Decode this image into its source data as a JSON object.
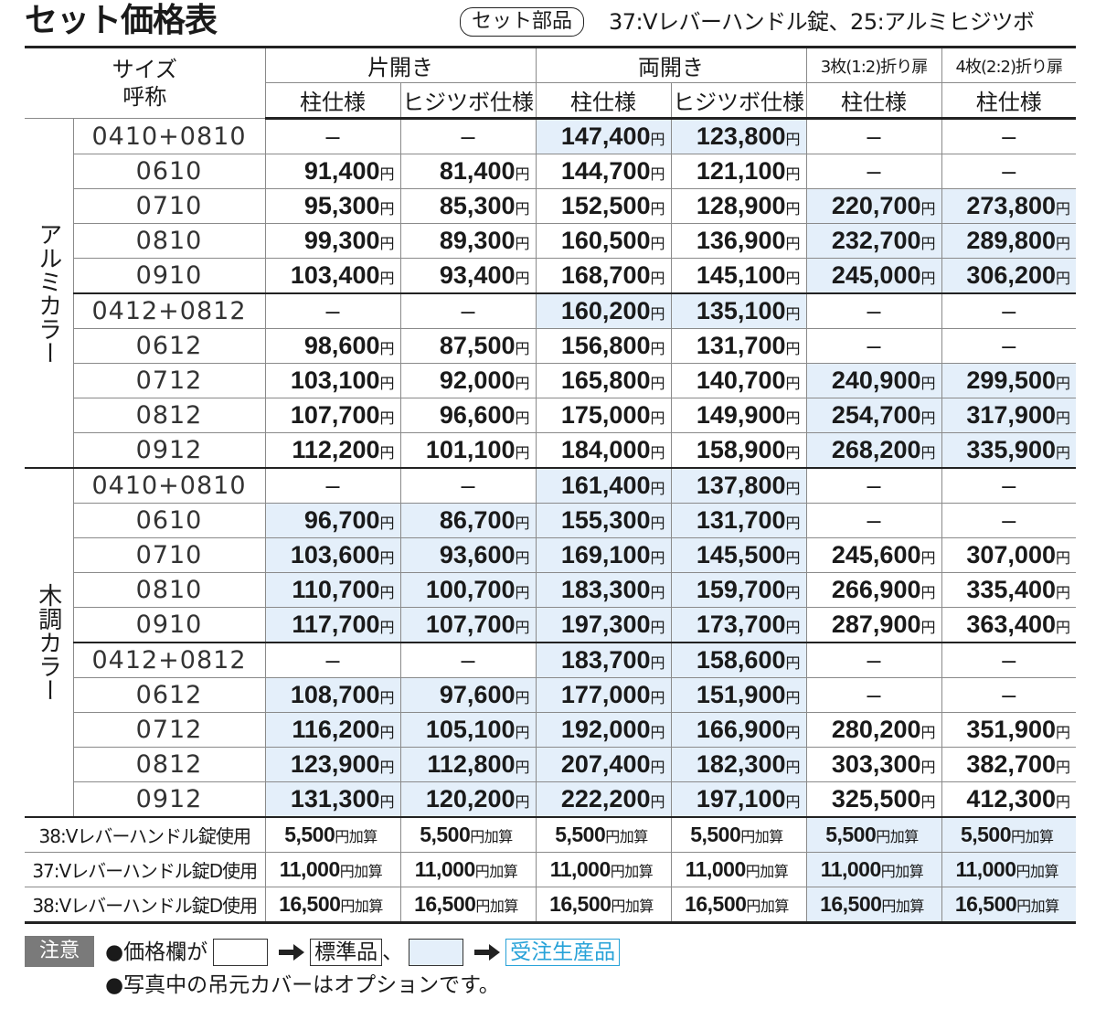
{
  "header": {
    "title": "セット価格表",
    "parts_label": "セット部品",
    "parts": "37:Vレバーハンドル錠、25:アルミヒジツボ"
  },
  "table": {
    "size_header": [
      "サイズ",
      "呼称"
    ],
    "groups": [
      {
        "label": "片開き",
        "columns": [
          "柱仕様",
          "ヒジツボ仕様"
        ]
      },
      {
        "label": "両開き",
        "columns": [
          "柱仕様",
          "ヒジツボ仕様"
        ]
      },
      {
        "label": "3枚(1:2)折り扉",
        "columns": [
          "柱仕様"
        ]
      },
      {
        "label": "4枚(2:2)折り扉",
        "columns": [
          "柱仕様"
        ]
      }
    ],
    "highlight_color": "#e4effa",
    "sections": [
      {
        "label": "アルミカラー",
        "blocks": [
          [
            {
              "size": "0410+0810",
              "cells": [
                "–",
                "–",
                "147,400円",
                "123,800円",
                "–",
                "–"
              ],
              "highlight": [
                false,
                false,
                true,
                true,
                false,
                false
              ]
            },
            {
              "size": "0610",
              "cells": [
                "91,400円",
                "81,400円",
                "144,700円",
                "121,100円",
                "–",
                "–"
              ],
              "highlight": [
                false,
                false,
                false,
                false,
                false,
                false
              ]
            },
            {
              "size": "0710",
              "cells": [
                "95,300円",
                "85,300円",
                "152,500円",
                "128,900円",
                "220,700円",
                "273,800円"
              ],
              "highlight": [
                false,
                false,
                false,
                false,
                true,
                true
              ]
            },
            {
              "size": "0810",
              "cells": [
                "99,300円",
                "89,300円",
                "160,500円",
                "136,900円",
                "232,700円",
                "289,800円"
              ],
              "highlight": [
                false,
                false,
                false,
                false,
                true,
                true
              ]
            },
            {
              "size": "0910",
              "cells": [
                "103,400円",
                "93,400円",
                "168,700円",
                "145,100円",
                "245,000円",
                "306,200円"
              ],
              "highlight": [
                false,
                false,
                false,
                false,
                true,
                true
              ]
            }
          ],
          [
            {
              "size": "0412+0812",
              "cells": [
                "–",
                "–",
                "160,200円",
                "135,100円",
                "–",
                "–"
              ],
              "highlight": [
                false,
                false,
                true,
                true,
                false,
                false
              ]
            },
            {
              "size": "0612",
              "cells": [
                "98,600円",
                "87,500円",
                "156,800円",
                "131,700円",
                "–",
                "–"
              ],
              "highlight": [
                false,
                false,
                false,
                false,
                false,
                false
              ]
            },
            {
              "size": "0712",
              "cells": [
                "103,100円",
                "92,000円",
                "165,800円",
                "140,700円",
                "240,900円",
                "299,500円"
              ],
              "highlight": [
                false,
                false,
                false,
                false,
                true,
                true
              ]
            },
            {
              "size": "0812",
              "cells": [
                "107,700円",
                "96,600円",
                "175,000円",
                "149,900円",
                "254,700円",
                "317,900円"
              ],
              "highlight": [
                false,
                false,
                false,
                false,
                true,
                true
              ]
            },
            {
              "size": "0912",
              "cells": [
                "112,200円",
                "101,100円",
                "184,000円",
                "158,900円",
                "268,200円",
                "335,900円"
              ],
              "highlight": [
                false,
                false,
                false,
                false,
                true,
                true
              ]
            }
          ]
        ]
      },
      {
        "label": "木調カラー",
        "blocks": [
          [
            {
              "size": "0410+0810",
              "cells": [
                "–",
                "–",
                "161,400円",
                "137,800円",
                "–",
                "–"
              ],
              "highlight": [
                false,
                false,
                true,
                true,
                false,
                false
              ]
            },
            {
              "size": "0610",
              "cells": [
                "96,700円",
                "86,700円",
                "155,300円",
                "131,700円",
                "–",
                "–"
              ],
              "highlight": [
                true,
                true,
                true,
                true,
                false,
                false
              ]
            },
            {
              "size": "0710",
              "cells": [
                "103,600円",
                "93,600円",
                "169,100円",
                "145,500円",
                "245,600円",
                "307,000円"
              ],
              "highlight": [
                true,
                true,
                true,
                true,
                false,
                false
              ]
            },
            {
              "size": "0810",
              "cells": [
                "110,700円",
                "100,700円",
                "183,300円",
                "159,700円",
                "266,900円",
                "335,400円"
              ],
              "highlight": [
                true,
                true,
                true,
                true,
                false,
                false
              ]
            },
            {
              "size": "0910",
              "cells": [
                "117,700円",
                "107,700円",
                "197,300円",
                "173,700円",
                "287,900円",
                "363,400円"
              ],
              "highlight": [
                true,
                true,
                true,
                true,
                false,
                false
              ]
            }
          ],
          [
            {
              "size": "0412+0812",
              "cells": [
                "–",
                "–",
                "183,700円",
                "158,600円",
                "–",
                "–"
              ],
              "highlight": [
                false,
                false,
                true,
                true,
                false,
                false
              ]
            },
            {
              "size": "0612",
              "cells": [
                "108,700円",
                "97,600円",
                "177,000円",
                "151,900円",
                "–",
                "–"
              ],
              "highlight": [
                true,
                true,
                true,
                true,
                false,
                false
              ]
            },
            {
              "size": "0712",
              "cells": [
                "116,200円",
                "105,100円",
                "192,000円",
                "166,900円",
                "280,200円",
                "351,900円"
              ],
              "highlight": [
                true,
                true,
                true,
                true,
                false,
                false
              ]
            },
            {
              "size": "0812",
              "cells": [
                "123,900円",
                "112,800円",
                "207,400円",
                "182,300円",
                "303,300円",
                "382,700円"
              ],
              "highlight": [
                true,
                true,
                true,
                true,
                false,
                false
              ]
            },
            {
              "size": "0912",
              "cells": [
                "131,300円",
                "120,200円",
                "222,200円",
                "197,100円",
                "325,500円",
                "412,300円"
              ],
              "highlight": [
                true,
                true,
                true,
                true,
                false,
                false
              ]
            }
          ]
        ]
      }
    ],
    "addons": [
      {
        "label": "38:Vレバーハンドル錠使用",
        "cells": [
          "5,500円加算",
          "5,500円加算",
          "5,500円加算",
          "5,500円加算",
          "5,500円加算",
          "5,500円加算"
        ],
        "highlight": [
          false,
          false,
          false,
          false,
          true,
          true
        ]
      },
      {
        "label": "37:Vレバーハンドル錠D使用",
        "cells": [
          "11,000円加算",
          "11,000円加算",
          "11,000円加算",
          "11,000円加算",
          "11,000円加算",
          "11,000円加算"
        ],
        "highlight": [
          false,
          false,
          false,
          false,
          true,
          true
        ]
      },
      {
        "label": "38:Vレバーハンドル錠D使用",
        "cells": [
          "16,500円加算",
          "16,500円加算",
          "16,500円加算",
          "16,500円加算",
          "16,500円加算",
          "16,500円加算"
        ],
        "highlight": [
          false,
          false,
          false,
          false,
          true,
          true
        ]
      }
    ]
  },
  "notes": {
    "label": "注意",
    "legend_intro": "●価格欄が",
    "standard": "標準品",
    "separator": "、",
    "made_to_order": "受注生産品",
    "photo_note": "●写真中の吊元カバーはオプションです。"
  }
}
